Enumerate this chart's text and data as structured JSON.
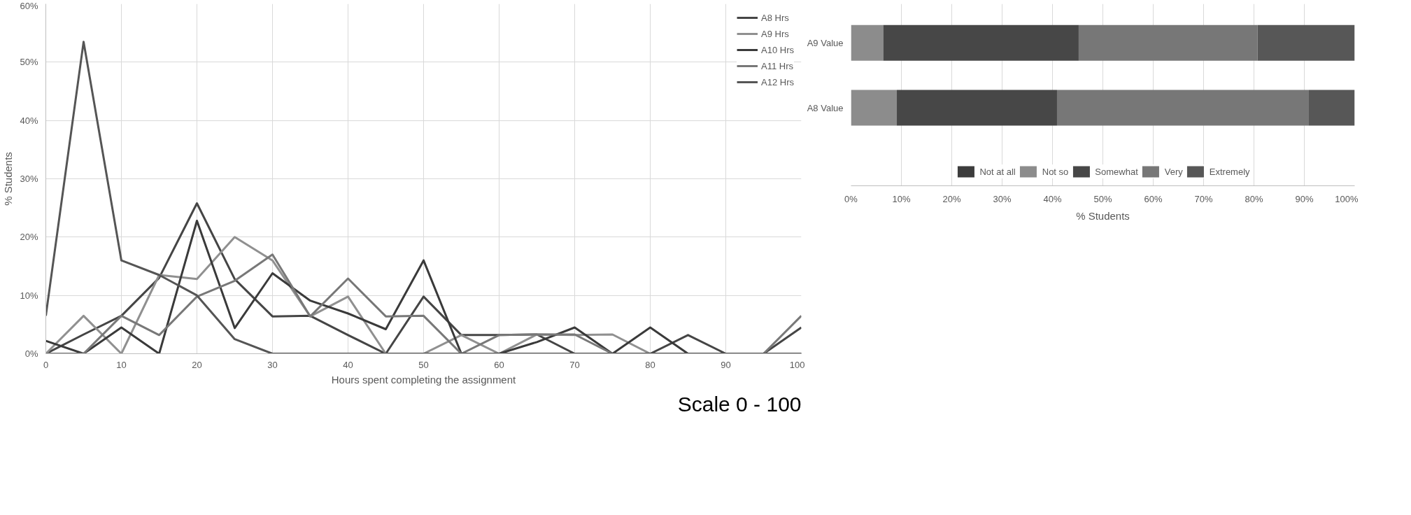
{
  "chart_data": [
    {
      "type": "line",
      "xlabel": "Hours spent completing the assignment",
      "ylabel": "% Students",
      "x": [
        0,
        5,
        10,
        15,
        20,
        25,
        30,
        35,
        40,
        45,
        50,
        55,
        60,
        65,
        70,
        75,
        80,
        85,
        90,
        95,
        100
      ],
      "series": [
        {
          "name": "A8 Hrs",
          "color": "#454545",
          "values": [
            0,
            3.3,
            6.5,
            13,
            25.8,
            12.8,
            6.4,
            6.5,
            3.2,
            0,
            9.8,
            3.2,
            3.2,
            3.3,
            0,
            0,
            0,
            3.2,
            0,
            0,
            4.5
          ]
        },
        {
          "name": "A9 Hrs",
          "color": "#909090",
          "values": [
            0,
            6.5,
            0,
            13.5,
            12.8,
            20,
            16,
            6.4,
            9.8,
            0,
            0,
            3.2,
            0,
            3.3,
            3.2,
            3.3,
            0,
            0,
            0,
            0,
            0
          ]
        },
        {
          "name": "A10 Hrs",
          "color": "#3a3a3a",
          "values": [
            2.2,
            0,
            4.5,
            0,
            22.8,
            4.4,
            13.8,
            9.1,
            6.9,
            4.2,
            16,
            0,
            0,
            2,
            4.5,
            0,
            4.5,
            0,
            0,
            0,
            0
          ]
        },
        {
          "name": "A11 Hrs",
          "color": "#787878",
          "values": [
            0,
            0,
            6.5,
            3.2,
            9.8,
            12.5,
            17,
            6.4,
            12.9,
            6.4,
            6.5,
            0,
            3.2,
            3.3,
            3.3,
            0,
            0,
            0,
            0,
            0,
            6.5
          ]
        },
        {
          "name": "A12 Hrs",
          "color": "#555555",
          "values": [
            6.5,
            53.5,
            16,
            13.5,
            10,
            2.5,
            0,
            0,
            0,
            0,
            0,
            0,
            0,
            0,
            0,
            0,
            0,
            0,
            0,
            0,
            0
          ]
        }
      ],
      "xlim": [
        0,
        100
      ],
      "xticks": [
        0,
        10,
        20,
        30,
        40,
        50,
        60,
        70,
        80,
        90,
        100
      ],
      "ylim": [
        0,
        60
      ],
      "yticks": [
        {
          "value": 0,
          "label": "0%"
        },
        {
          "value": 10,
          "label": "10%"
        },
        {
          "value": 20,
          "label": "20%"
        },
        {
          "value": 30,
          "label": "30%"
        },
        {
          "value": 40,
          "label": "40%"
        },
        {
          "value": 50,
          "label": "50%"
        },
        {
          "value": 60,
          "label": "60%"
        }
      ],
      "grid": true,
      "legend": "top right",
      "line_style": "solid",
      "marker": "none",
      "annotations": [
        "Scale 0 - 100"
      ]
    },
    {
      "type": "bar",
      "orientation": "horizontal",
      "stacked": true,
      "xlabel": "% Students",
      "categories": [
        "A9 Value",
        "A8 Value"
      ],
      "series": [
        {
          "name": "Not at all",
          "color": "#3c3c3c",
          "values": [
            0,
            0
          ]
        },
        {
          "name": "Not so",
          "color": "#8c8c8c",
          "values": [
            6.4,
            9.1
          ]
        },
        {
          "name": "Somewhat",
          "color": "#474747",
          "values": [
            38.8,
            31.8
          ]
        },
        {
          "name": "Very",
          "color": "#777777",
          "values": [
            35.5,
            50
          ]
        },
        {
          "name": "Extremely",
          "color": "#575757",
          "values": [
            19.3,
            9.1
          ]
        }
      ],
      "xlim": [
        0,
        100
      ],
      "xticks": [
        {
          "value": 0,
          "label": "0%"
        },
        {
          "value": 10,
          "label": "10%"
        },
        {
          "value": 20,
          "label": "20%"
        },
        {
          "value": 30,
          "label": "30%"
        },
        {
          "value": 40,
          "label": "40%"
        },
        {
          "value": 50,
          "label": "50%"
        },
        {
          "value": 60,
          "label": "60%"
        },
        {
          "value": 70,
          "label": "70%"
        },
        {
          "value": 80,
          "label": "80%"
        },
        {
          "value": 90,
          "label": "90%"
        },
        {
          "value": 100,
          "label": "100%"
        }
      ],
      "grid": "x",
      "legend": "bottom"
    }
  ]
}
